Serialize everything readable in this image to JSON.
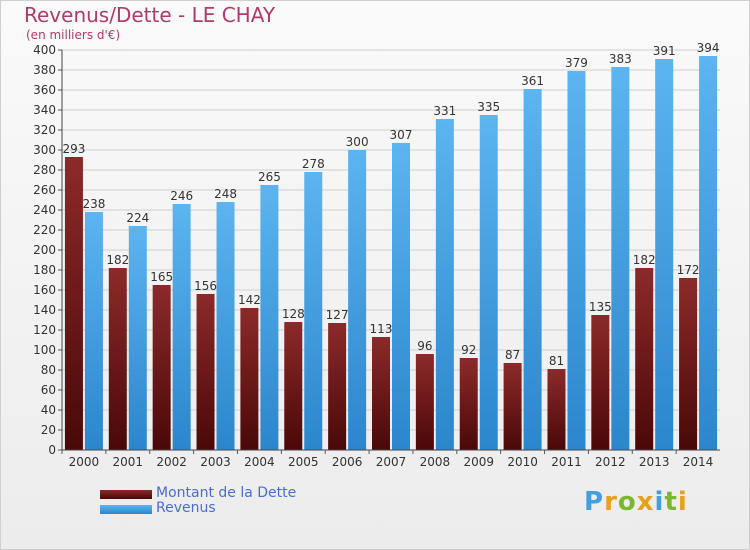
{
  "chart_data": {
    "type": "bar",
    "title": "Revenus/Dette - LE CHAY",
    "subtitle": "(en milliers d'€)",
    "categories": [
      "2000",
      "2001",
      "2002",
      "2003",
      "2004",
      "2005",
      "2006",
      "2007",
      "2008",
      "2009",
      "2010",
      "2011",
      "2012",
      "2013",
      "2014"
    ],
    "series": [
      {
        "name": "Montant de la Dette",
        "color": "#7a1f1f",
        "values": [
          293,
          182,
          165,
          156,
          142,
          128,
          127,
          113,
          96,
          92,
          87,
          81,
          135,
          182,
          172
        ]
      },
      {
        "name": "Revenus",
        "color": "#3f9fe0",
        "values": [
          238,
          224,
          246,
          248,
          265,
          278,
          300,
          307,
          331,
          335,
          361,
          379,
          383,
          391,
          394
        ]
      }
    ],
    "ylim": [
      0,
      400
    ],
    "yticks": [
      0,
      20,
      40,
      60,
      80,
      100,
      120,
      140,
      160,
      180,
      200,
      220,
      240,
      260,
      280,
      300,
      320,
      340,
      360,
      380,
      400
    ],
    "grid": true,
    "legend_position": "bottom-left"
  },
  "logo": {
    "text": "Proxiti"
  }
}
